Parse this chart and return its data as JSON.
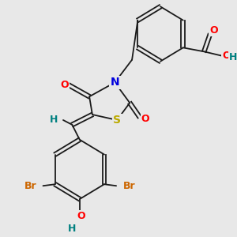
{
  "background_color": "#e8e8e8",
  "figsize": [
    3.0,
    3.0
  ],
  "dpi": 100,
  "bond_color": "#1a1a1a",
  "bond_lw": 1.3,
  "colors": {
    "N": "#0000dd",
    "S": "#bbaa00",
    "O": "#ff0000",
    "H": "#008080",
    "Br": "#cc6600",
    "C": "#1a1a1a"
  }
}
